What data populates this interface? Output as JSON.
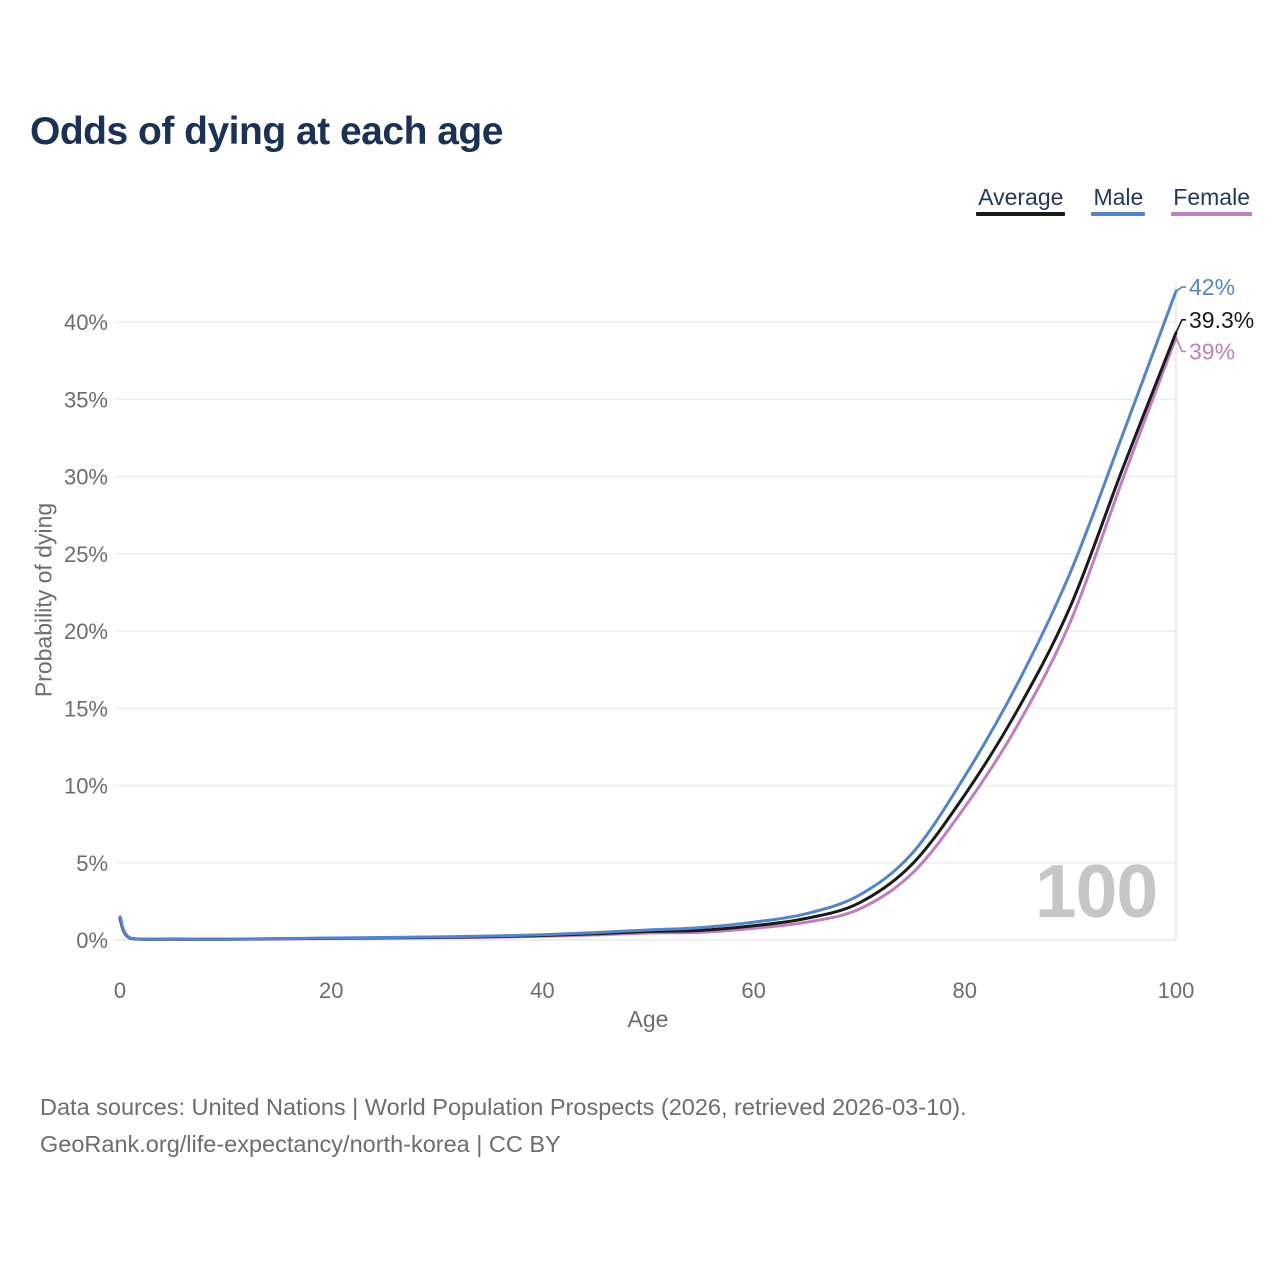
{
  "page": {
    "title": "Odds of dying at each age"
  },
  "chart_data": {
    "type": "line",
    "title": "Odds of dying at each age",
    "xlabel": "Age",
    "ylabel": "Probability of dying",
    "xlim": [
      0,
      100
    ],
    "ylim": [
      0,
      42
    ],
    "grid": "horizontal",
    "legend_position": "top-right",
    "hovered_age": "100",
    "x_ticks": [
      0,
      20,
      40,
      60,
      80,
      100
    ],
    "y_ticks": [
      0,
      5,
      10,
      15,
      20,
      25,
      30,
      35,
      40
    ],
    "y_tick_suffix": "%",
    "x": [
      0,
      1,
      5,
      10,
      15,
      20,
      25,
      30,
      35,
      40,
      45,
      50,
      55,
      60,
      65,
      70,
      75,
      80,
      85,
      90,
      95,
      100
    ],
    "series": [
      {
        "name": "Average",
        "color": "#1a1a1a",
        "end_label": "39.3%",
        "values": [
          1.4,
          0.11,
          0.06,
          0.05,
          0.08,
          0.11,
          0.14,
          0.17,
          0.22,
          0.29,
          0.4,
          0.55,
          0.62,
          0.92,
          1.4,
          2.4,
          4.9,
          9.4,
          14.9,
          21.6,
          30.6,
          39.3
        ]
      },
      {
        "name": "Male",
        "color": "#5585c7",
        "end_label": "42%",
        "values": [
          1.5,
          0.12,
          0.07,
          0.06,
          0.09,
          0.13,
          0.16,
          0.2,
          0.26,
          0.34,
          0.48,
          0.65,
          0.8,
          1.15,
          1.7,
          2.9,
          5.6,
          10.6,
          16.6,
          23.8,
          32.8,
          42.0
        ]
      },
      {
        "name": "Female",
        "color": "#bf7ebf",
        "end_label": "39%",
        "values": [
          1.3,
          0.1,
          0.05,
          0.045,
          0.07,
          0.09,
          0.12,
          0.14,
          0.18,
          0.24,
          0.33,
          0.45,
          0.5,
          0.75,
          1.15,
          2.0,
          4.3,
          8.6,
          13.9,
          20.6,
          29.9,
          39.0
        ]
      }
    ]
  },
  "footer": {
    "line1": "Data sources: United Nations | World Population Prospects (2026, retrieved 2026-03-10).",
    "line2": "GeoRank.org/life-expectancy/north-korea | CC BY"
  }
}
